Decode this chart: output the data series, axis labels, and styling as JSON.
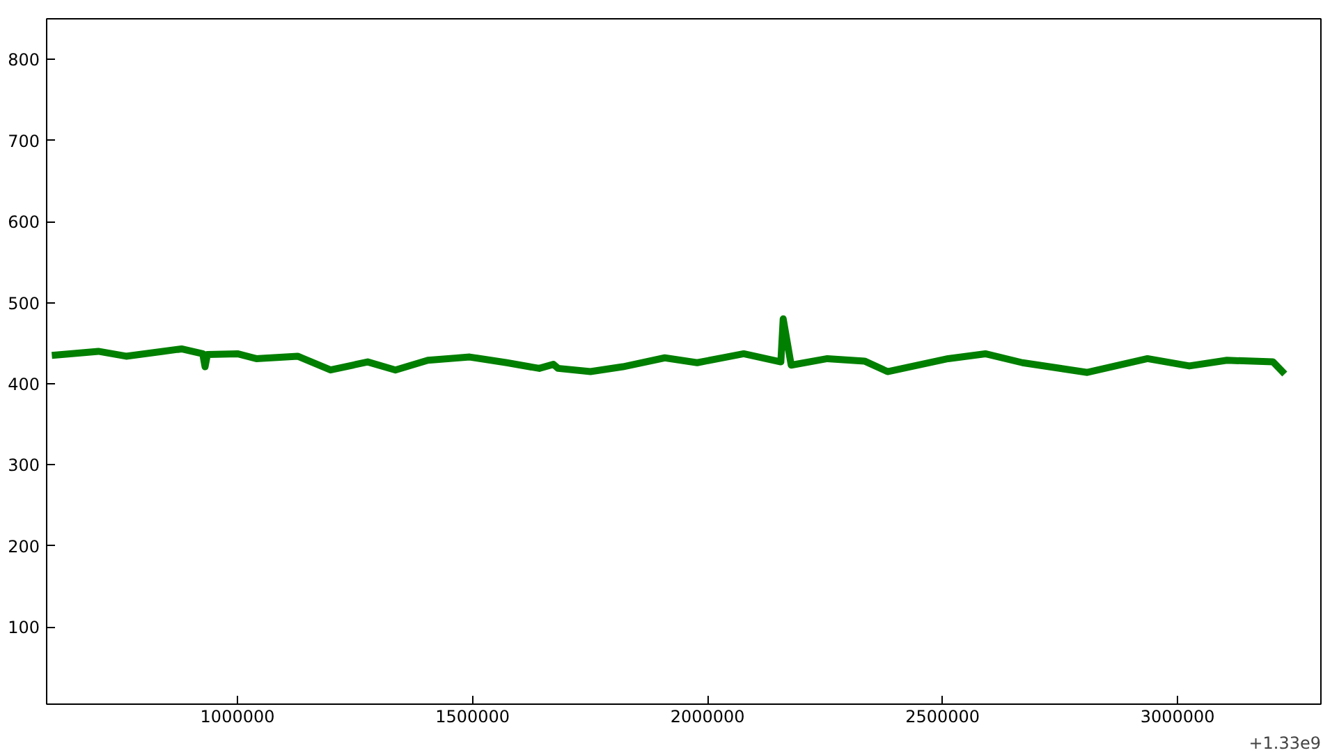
{
  "chart_data": {
    "type": "line",
    "x": [
      605000,
      704000,
      763000,
      881000,
      926000,
      931000,
      936000,
      1000000,
      1040000,
      1128000,
      1198000,
      1277000,
      1336000,
      1405000,
      1494000,
      1573000,
      1642000,
      1672000,
      1682000,
      1751000,
      1820000,
      1909000,
      1978000,
      2077000,
      2156000,
      2161000,
      2178000,
      2255000,
      2334000,
      2383000,
      2512000,
      2591000,
      2670000,
      2808000,
      2936000,
      3025000,
      3105000,
      3203000,
      3228000
    ],
    "series": [
      {
        "color": "#007f00",
        "values": [
          435,
          440,
          434,
          443,
          437,
          421,
          436,
          437,
          431,
          434,
          417,
          427,
          417,
          429,
          433,
          426,
          419,
          424,
          419,
          415,
          421,
          432,
          426,
          437,
          427,
          480,
          423,
          431,
          428,
          415,
          431,
          437,
          426,
          414,
          431,
          422,
          429,
          427,
          412
        ]
      }
    ],
    "xlim": [
      594000,
      3305000
    ],
    "ylim": [
      5,
      850
    ],
    "xticks": [
      1000000,
      1500000,
      2000000,
      2500000,
      3000000
    ],
    "yticks": [
      100,
      200,
      300,
      400,
      500,
      600,
      700,
      800
    ],
    "annotations": [
      "+1.33e9"
    ],
    "grid": false
  }
}
